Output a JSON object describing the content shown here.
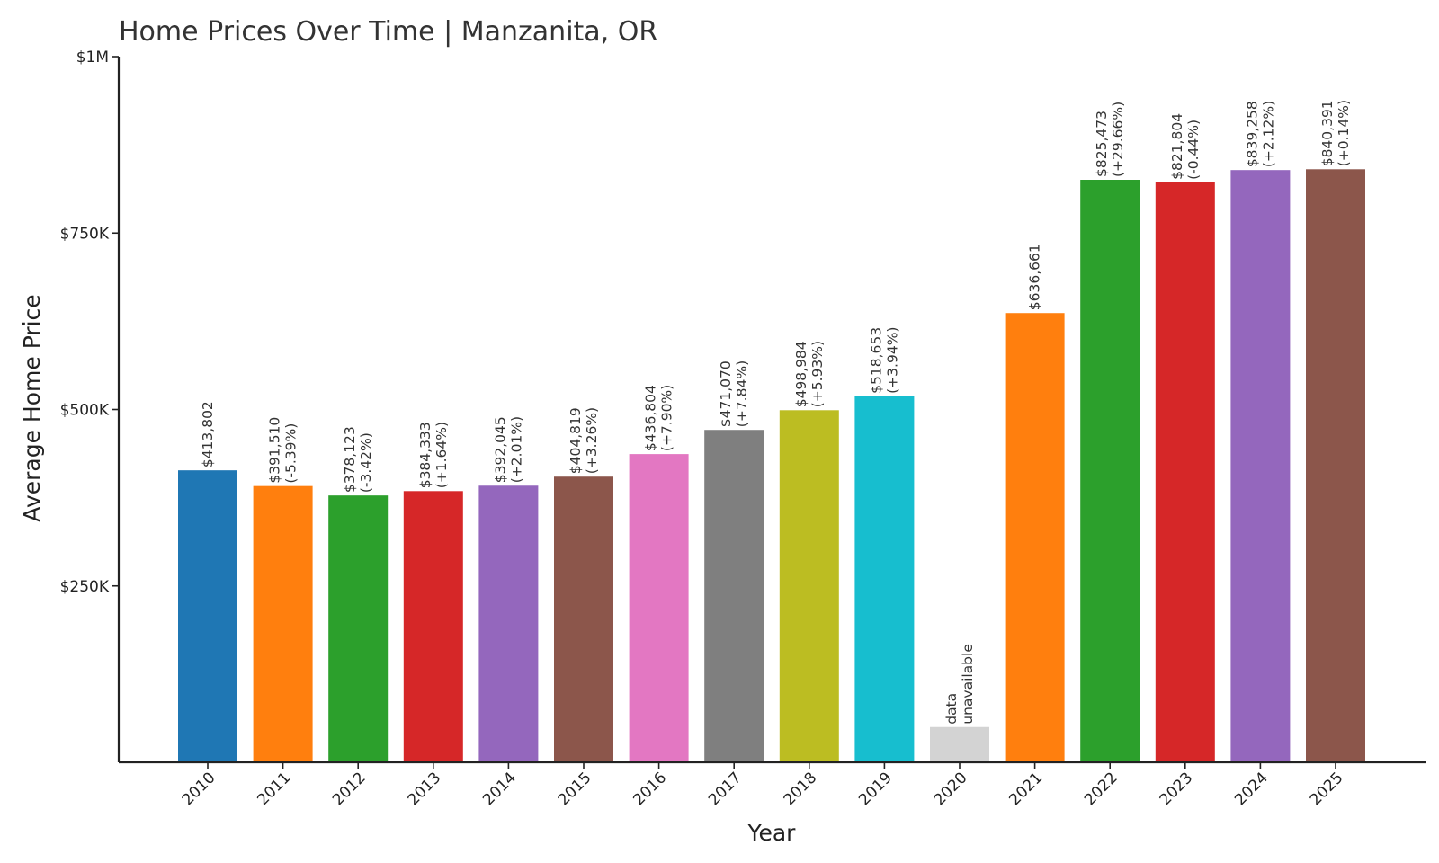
{
  "chart_data": {
    "type": "bar",
    "title": "Home Prices Over Time | Manzanita, OR",
    "xlabel": "Year",
    "ylabel": "Average Home Price",
    "ylim": [
      0,
      1000000
    ],
    "yticks": [
      {
        "value": 250000,
        "label": "$250K"
      },
      {
        "value": 500000,
        "label": "$500K"
      },
      {
        "value": 750000,
        "label": "$750K"
      },
      {
        "value": 1000000,
        "label": "$1M"
      }
    ],
    "grid": false,
    "categories": [
      "2010",
      "2011",
      "2012",
      "2013",
      "2014",
      "2015",
      "2016",
      "2017",
      "2018",
      "2019",
      "2020",
      "2021",
      "2022",
      "2023",
      "2024",
      "2025"
    ],
    "values": [
      413802,
      391510,
      378123,
      384333,
      392045,
      404819,
      436804,
      471070,
      498984,
      518653,
      null,
      636661,
      825473,
      821804,
      839258,
      840391
    ],
    "value_labels": [
      "$413,802",
      "$391,510",
      "$378,123",
      "$384,333",
      "$392,045",
      "$404,819",
      "$436,804",
      "$471,070",
      "$498,984",
      "$518,653",
      "data",
      "$636,661",
      "$825,473",
      "$821,804",
      "$839,258",
      "$840,391"
    ],
    "change_labels": [
      "",
      "(-5.39%)",
      "(-3.42%)",
      "(+1.64%)",
      "(+2.01%)",
      "(+3.26%)",
      "(+7.90%)",
      "(+7.84%)",
      "(+5.93%)",
      "(+3.94%)",
      "unavailable",
      "",
      "(+29.66%)",
      "(-0.44%)",
      "(+2.12%)",
      "(+0.14%)"
    ],
    "missing_placeholder_value": 50000,
    "colors": [
      "#1f77b4",
      "#ff7f0e",
      "#2ca02c",
      "#d62728",
      "#9467bd",
      "#8c564b",
      "#e377c2",
      "#7f7f7f",
      "#bcbd22",
      "#17becf",
      "#d3d3d3",
      "#ff7f0e",
      "#2ca02c",
      "#d62728",
      "#9467bd",
      "#8c564b"
    ]
  }
}
